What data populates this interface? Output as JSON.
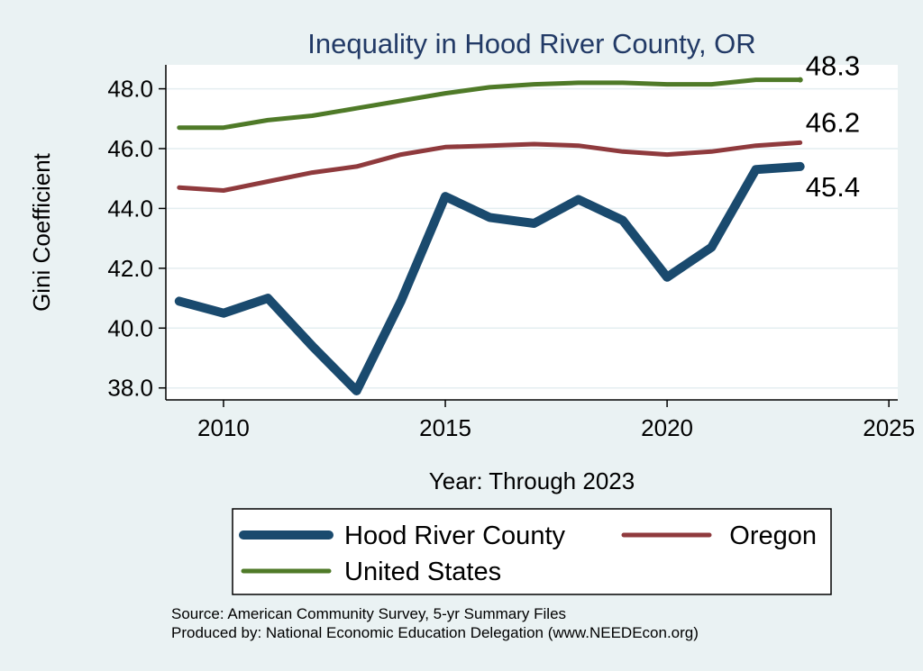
{
  "chart_data": {
    "type": "line",
    "title": "Inequality in Hood River County, OR",
    "xlabel": "Year: Through 2023",
    "ylabel": "Gini Coefficient",
    "xlim": [
      2008.7,
      2025.2
    ],
    "ylim": [
      37.6,
      48.8
    ],
    "xticks": [
      2010,
      2015,
      2020,
      2025
    ],
    "yticks": [
      38.0,
      40.0,
      42.0,
      44.0,
      46.0,
      48.0
    ],
    "grid": true,
    "x": [
      2009,
      2010,
      2011,
      2012,
      2013,
      2014,
      2015,
      2016,
      2017,
      2018,
      2019,
      2020,
      2021,
      2022,
      2023
    ],
    "series": [
      {
        "name": "Hood River County",
        "color": "#1a4a6e",
        "values": [
          40.9,
          40.5,
          41.0,
          39.4,
          37.9,
          40.9,
          44.4,
          43.7,
          43.5,
          44.3,
          43.6,
          41.7,
          42.7,
          45.3,
          45.4
        ],
        "end_label": "45.4"
      },
      {
        "name": "Oregon",
        "color": "#8f3a3d",
        "values": [
          44.7,
          44.6,
          44.9,
          45.2,
          45.4,
          45.8,
          46.05,
          46.1,
          46.15,
          46.1,
          45.9,
          45.8,
          45.9,
          46.1,
          46.2
        ],
        "end_label": "46.2"
      },
      {
        "name": "United States",
        "color": "#4f7a28",
        "values": [
          46.7,
          46.7,
          46.95,
          47.1,
          47.35,
          47.6,
          47.85,
          48.05,
          48.15,
          48.2,
          48.2,
          48.15,
          48.15,
          48.3,
          48.3
        ],
        "end_label": "48.3"
      }
    ],
    "legend": {
      "position": "bottom",
      "entries": [
        "Hood River County",
        "Oregon",
        "United States"
      ]
    },
    "notes": [
      "Source: American Community Survey, 5-yr Summary Files",
      "Produced by: National Economic Education Delegation (www.NEEDEcon.org)"
    ]
  }
}
